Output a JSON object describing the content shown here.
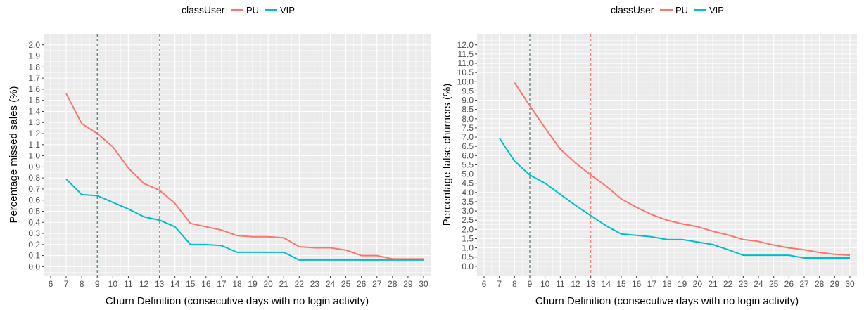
{
  "legend": {
    "title": "classUser",
    "entries": [
      {
        "label": "PU",
        "color": "#F8766D"
      },
      {
        "label": "VIP",
        "color": "#00BFC4"
      }
    ]
  },
  "chart_data": [
    {
      "type": "line",
      "xlabel": "Churn Definition (consecutive days with no login activity)",
      "ylabel": "Percentage missed sales (%)",
      "xlim": [
        6,
        30
      ],
      "ylim": [
        -0.08,
        2.1
      ],
      "xticks": [
        6,
        7,
        8,
        9,
        10,
        11,
        12,
        13,
        14,
        15,
        16,
        17,
        18,
        19,
        20,
        21,
        22,
        23,
        24,
        25,
        26,
        27,
        28,
        29,
        30
      ],
      "yticks": [
        "0.0",
        "0.1",
        "0.2",
        "0.3",
        "0.4",
        "0.5",
        "0.6",
        "0.7",
        "0.8",
        "0.9",
        "1.0",
        "1.1",
        "1.2",
        "1.3",
        "1.4",
        "1.5",
        "1.6",
        "1.7",
        "1.8",
        "1.9",
        "2.0"
      ],
      "grid": true,
      "legend_position": "top",
      "vlines": [
        {
          "x": 9,
          "color": "#4a7373",
          "style": "dashed"
        },
        {
          "x": 13,
          "color": "#F8766D",
          "style": "dashed"
        }
      ],
      "x": [
        7,
        8,
        9,
        10,
        11,
        12,
        13,
        14,
        15,
        16,
        17,
        18,
        19,
        20,
        21,
        22,
        23,
        24,
        25,
        26,
        27,
        28,
        29,
        30
      ],
      "series": [
        {
          "name": "PU",
          "color": "#F8766D",
          "values": [
            1.56,
            1.29,
            1.2,
            1.08,
            0.89,
            0.75,
            0.69,
            0.57,
            0.39,
            0.36,
            0.33,
            0.28,
            0.27,
            0.27,
            0.26,
            0.18,
            0.17,
            0.17,
            0.15,
            0.1,
            0.1,
            0.07,
            0.07,
            0.07
          ]
        },
        {
          "name": "VIP",
          "color": "#00BFC4",
          "values": [
            0.79,
            0.65,
            0.64,
            0.58,
            0.52,
            0.45,
            0.42,
            0.36,
            0.2,
            0.2,
            0.19,
            0.13,
            0.13,
            0.13,
            0.13,
            0.06,
            0.06,
            0.06,
            0.06,
            0.06,
            0.06,
            0.06,
            0.06,
            0.06
          ]
        }
      ]
    },
    {
      "type": "line",
      "xlabel": "Churn Definition (consecutive days with no login activity)",
      "ylabel": "Percentage false churners (%)",
      "xlim": [
        6,
        30
      ],
      "ylim": [
        -0.5,
        12.6
      ],
      "xticks": [
        6,
        7,
        8,
        9,
        10,
        11,
        12,
        13,
        14,
        15,
        16,
        17,
        18,
        19,
        20,
        21,
        22,
        23,
        24,
        25,
        26,
        27,
        28,
        29,
        30
      ],
      "yticks": [
        "0.0",
        "0.5",
        "1.0",
        "1.5",
        "2.0",
        "2.5",
        "3.0",
        "3.5",
        "4.0",
        "4.5",
        "5.0",
        "5.5",
        "6.0",
        "6.5",
        "7.0",
        "7.5",
        "8.0",
        "8.5",
        "9.0",
        "9.5",
        "10.0",
        "10.5",
        "11.0",
        "11.5",
        "12.0"
      ],
      "grid": true,
      "legend_position": "top",
      "vlines": [
        {
          "x": 9,
          "color": "#4a7373",
          "style": "dashed"
        },
        {
          "x": 13,
          "color": "#F8766D",
          "style": "dashed"
        }
      ],
      "x_pu": [
        8,
        9,
        10,
        11,
        12,
        13,
        14,
        15,
        16,
        17,
        18,
        19,
        20,
        21,
        22,
        23,
        24,
        25,
        26,
        27,
        28,
        29,
        30
      ],
      "x_vip": [
        7,
        8,
        9,
        10,
        11,
        12,
        13,
        14,
        15,
        16,
        17,
        18,
        19,
        20,
        21,
        22,
        23,
        24,
        25,
        26,
        27,
        28,
        29,
        30
      ],
      "series": [
        {
          "name": "PU",
          "color": "#F8766D",
          "x": [
            8,
            9,
            10,
            11,
            12,
            13,
            14,
            15,
            16,
            17,
            18,
            19,
            20,
            21,
            22,
            23,
            24,
            25,
            26,
            27,
            28,
            29,
            30
          ],
          "values": [
            9.95,
            8.7,
            7.5,
            6.35,
            5.6,
            4.95,
            4.35,
            3.65,
            3.2,
            2.8,
            2.5,
            2.3,
            2.15,
            1.9,
            1.7,
            1.45,
            1.35,
            1.15,
            1.0,
            0.9,
            0.75,
            0.65,
            0.6
          ]
        },
        {
          "name": "VIP",
          "color": "#00BFC4",
          "x": [
            7,
            8,
            9,
            10,
            11,
            12,
            13,
            14,
            15,
            16,
            17,
            18,
            19,
            20,
            21,
            22,
            23,
            24,
            25,
            26,
            27,
            28,
            29,
            30
          ],
          "values": [
            6.95,
            5.7,
            4.95,
            4.5,
            3.9,
            3.3,
            2.75,
            2.2,
            1.75,
            1.68,
            1.6,
            1.45,
            1.45,
            1.32,
            1.18,
            0.9,
            0.6,
            0.6,
            0.6,
            0.6,
            0.45,
            0.45,
            0.45,
            0.45
          ]
        }
      ]
    }
  ]
}
